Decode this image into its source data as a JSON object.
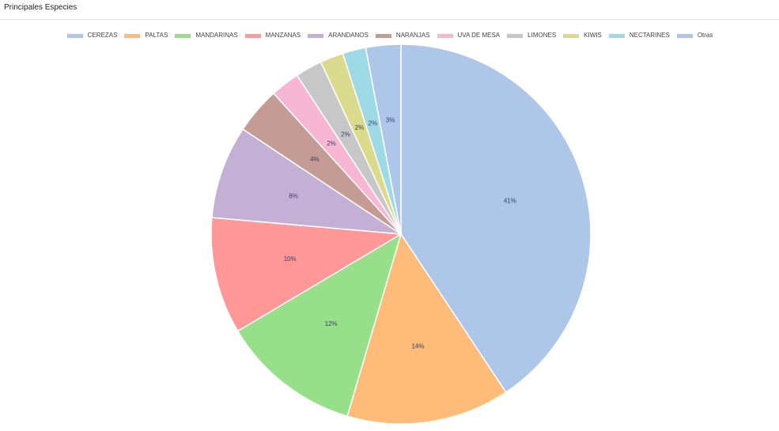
{
  "panel": {
    "title": "Principales Especies"
  },
  "chart_data": {
    "type": "pie",
    "categories": [
      "CEREZAS",
      "PALTAS",
      "MANDARINAS",
      "MANZANAS",
      "ARANDANOS",
      "NARANJAS",
      "UVA DE MESA",
      "LIMONES",
      "KIWIS",
      "NECTARINES",
      "Otras"
    ],
    "values": [
      41,
      14,
      12,
      10,
      8,
      4,
      2.5,
      2.3,
      2,
      2,
      3
    ],
    "data_labels": [
      "41%",
      "14%",
      "12%",
      "10%",
      "8%",
      "4%",
      "2%",
      "2%",
      "2%",
      "2%",
      "3%"
    ],
    "colors": [
      "#aec7e8",
      "#ffbb78",
      "#98df8a",
      "#ff9896",
      "#c5b0d5",
      "#c49c94",
      "#f7b6d2",
      "#c7c7c7",
      "#dbdb8d",
      "#9edae5",
      "#aec7e8"
    ],
    "start": "top",
    "direction": "clockwise",
    "legend_position": "top"
  }
}
